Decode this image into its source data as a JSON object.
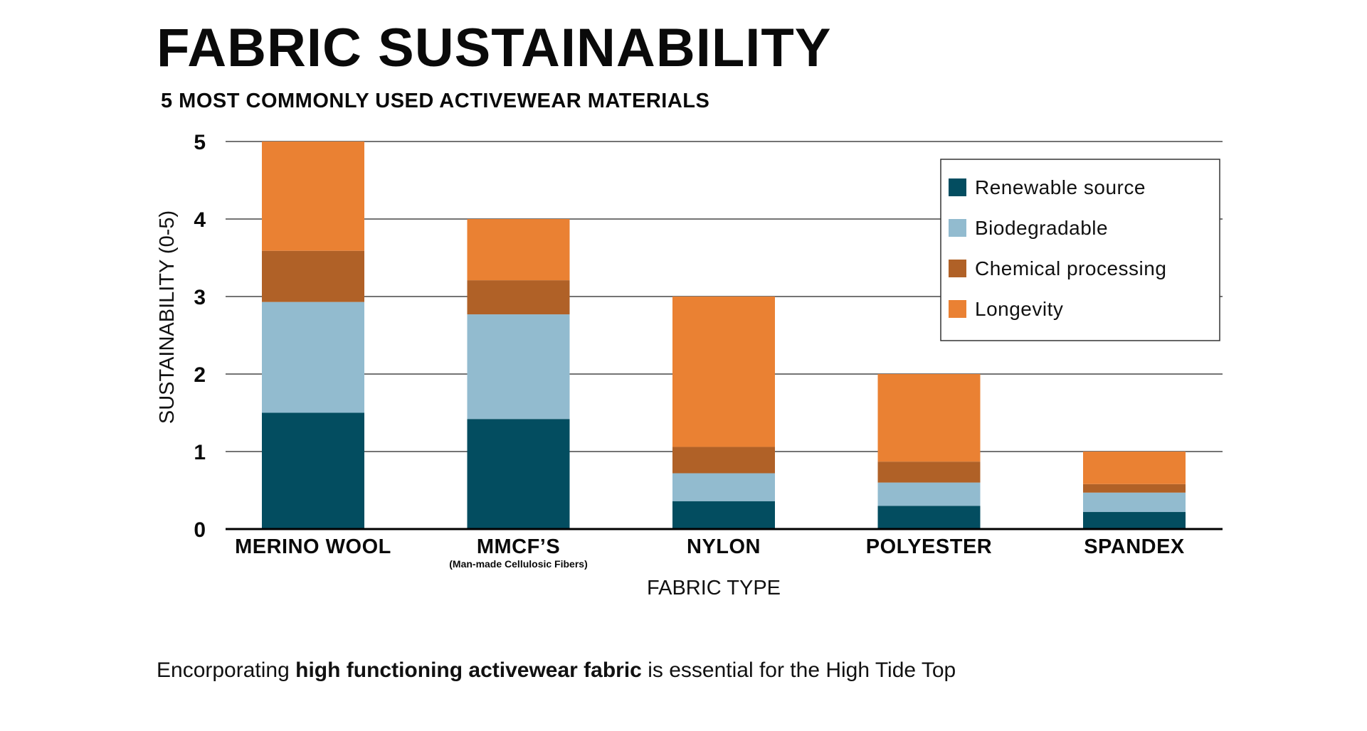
{
  "chart_data": {
    "type": "bar",
    "stacked": true,
    "title": "FABRIC SUSTAINABILITY",
    "subtitle": "5 MOST COMMONLY USED ACTIVEWEAR MATERIALS",
    "xlabel": "FABRIC TYPE",
    "ylabel": "SUSTAINABILITY (0-5)",
    "ylim": [
      0,
      5
    ],
    "yticks": [
      "0",
      "1",
      "2",
      "3",
      "4",
      "5"
    ],
    "grid": true,
    "legend_position": "top-right",
    "categories": [
      {
        "label": "MERINO WOOL",
        "sublabel": ""
      },
      {
        "label": "MMCF’S",
        "sublabel": "(Man-made Cellulosic Fibers)"
      },
      {
        "label": "NYLON",
        "sublabel": ""
      },
      {
        "label": "POLYESTER",
        "sublabel": ""
      },
      {
        "label": "SPANDEX",
        "sublabel": ""
      }
    ],
    "series": [
      {
        "name": "Renewable source",
        "color": "#034d60",
        "values": [
          1.5,
          1.42,
          0.36,
          0.3,
          0.22
        ]
      },
      {
        "name": "Biodegradable",
        "color": "#92bbcf",
        "values": [
          1.43,
          1.35,
          0.36,
          0.3,
          0.25
        ]
      },
      {
        "name": "Chemical processing",
        "color": "#b06127",
        "values": [
          0.66,
          0.44,
          0.34,
          0.27,
          0.11
        ]
      },
      {
        "name": "Longevity",
        "color": "#ea8133",
        "values": [
          1.41,
          0.79,
          1.94,
          1.13,
          0.42
        ]
      }
    ]
  },
  "footer": {
    "prefix": "Encorporating ",
    "bold": "high functioning activewear fabric",
    "suffix": " is essential for the High Tide Top"
  }
}
